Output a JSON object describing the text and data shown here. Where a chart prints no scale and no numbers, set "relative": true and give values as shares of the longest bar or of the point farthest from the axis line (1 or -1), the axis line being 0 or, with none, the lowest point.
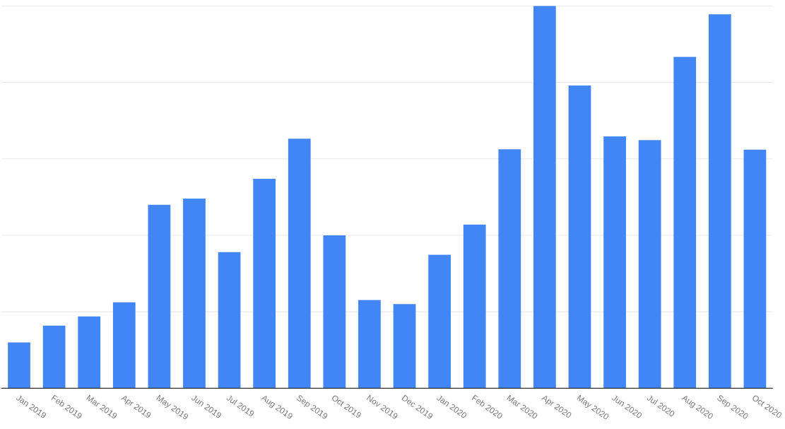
{
  "chart_data": {
    "type": "bar",
    "relative": true,
    "grid": "y",
    "categories": [
      "Jan 2019",
      "Feb 2019",
      "Mar 2019",
      "Apr 2019",
      "May 2019",
      "Jun 2019",
      "Jul 2019",
      "Aug 2019",
      "Sep 2019",
      "Oct 2019",
      "Nov 2019",
      "Dec 2019",
      "Jan 2020",
      "Feb 2020",
      "Mar 2020",
      "Apr 2020",
      "May 2020",
      "Jun 2020",
      "Jul 2020",
      "Aug 2020",
      "Sep 2020",
      "Oct 2020"
    ],
    "values": [
      0.12,
      0.164,
      0.188,
      0.225,
      0.48,
      0.496,
      0.356,
      0.548,
      0.653,
      0.4,
      0.231,
      0.22,
      0.349,
      0.428,
      0.625,
      1.0,
      0.792,
      0.659,
      0.649,
      0.867,
      0.978,
      0.624
    ],
    "color": "#4285f4"
  }
}
